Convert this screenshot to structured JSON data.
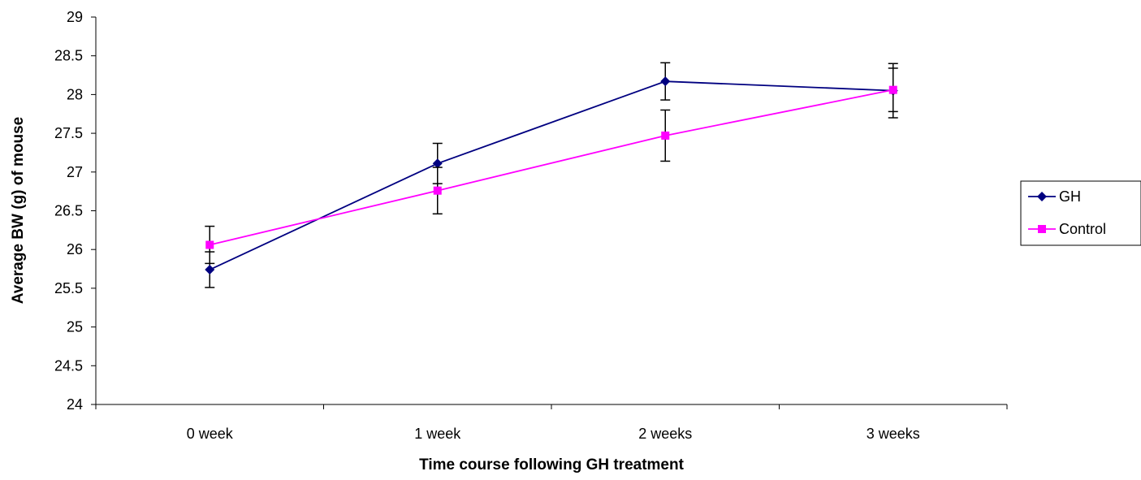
{
  "chart_data": {
    "type": "line",
    "title": "",
    "xlabel": "Time course following GH treatment",
    "ylabel": "Average BW (g) of mouse",
    "categories": [
      "0 week",
      "1 week",
      "2 weeks",
      "3 weeks"
    ],
    "ylim": [
      24,
      29
    ],
    "ytick_step": 0.5,
    "yticks": [
      "24",
      "24.5",
      "25",
      "25.5",
      "26",
      "26.5",
      "27",
      "27.5",
      "28",
      "28.5",
      "29"
    ],
    "grid": false,
    "legend": "right",
    "series": [
      {
        "name": "GH",
        "color": "#000080",
        "marker": "diamond",
        "values": [
          25.74,
          27.11,
          28.17,
          28.05
        ],
        "errors": [
          0.23,
          0.26,
          0.24,
          0.35
        ]
      },
      {
        "name": "Control",
        "color": "#FF00FF",
        "marker": "square",
        "values": [
          26.06,
          26.76,
          27.47,
          28.06
        ],
        "errors": [
          0.24,
          0.3,
          0.33,
          0.28
        ]
      }
    ]
  }
}
